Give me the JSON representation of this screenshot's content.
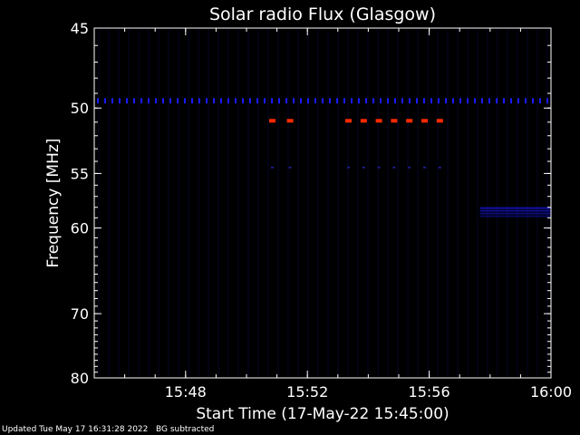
{
  "chart_data": {
    "type": "heatmap",
    "title": "Solar radio Flux (Glasgow)",
    "xlabel": "Start Time (17-May-22 15:45:00)",
    "ylabel": "Frequency [MHz]",
    "x_unit": "time",
    "xlim": [
      "15:45:00",
      "16:00:00"
    ],
    "ylim": [
      45,
      80
    ],
    "y_inverted": true,
    "x_ticks": [
      "15:48",
      "15:52",
      "15:56",
      "16:00"
    ],
    "y_ticks": [
      45,
      50,
      55,
      60,
      70,
      80
    ],
    "colors": {
      "background": "#000000",
      "low_intensity": "#0a0a3c",
      "mid_intensity": "#1a1aff",
      "high_intensity": "#ff2a00",
      "axes": "#ffffff"
    },
    "features": [
      {
        "name": "50 MHz carrier",
        "freq_mhz": 49.5,
        "start": "15:45:00",
        "end": "16:00:00",
        "intensity": "mid"
      },
      {
        "name": "burst row 51 MHz",
        "freq_mhz": 50.9,
        "times": [
          "15:50:50",
          "15:51:25",
          "15:53:20",
          "15:53:50",
          "15:54:20",
          "15:54:50",
          "15:55:20",
          "15:55:50",
          "15:56:20"
        ],
        "intensity": "high"
      },
      {
        "name": "54.5 MHz marks",
        "freq_mhz": 54.5,
        "times": [
          "15:50:50",
          "15:51:25",
          "15:53:20",
          "15:53:50",
          "15:54:20",
          "15:54:50",
          "15:55:20",
          "15:55:50",
          "15:56:20"
        ],
        "intensity": "low"
      },
      {
        "name": "band 58-59 MHz",
        "freq_mhz": 58.5,
        "start": "15:57:40",
        "end": "16:00:00",
        "intensity": "mid"
      }
    ]
  },
  "footer": {
    "updated": "Updated Tue May 17 16:31:28 2022",
    "note": "BG subtracted"
  }
}
